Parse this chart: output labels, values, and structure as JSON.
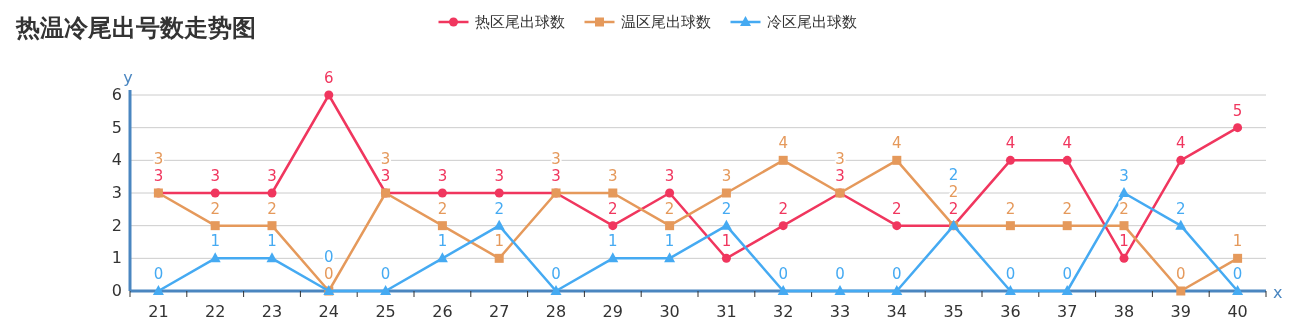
{
  "chart_data": {
    "type": "line",
    "title": "热温冷尾出号数走势图",
    "xlabel": "x",
    "ylabel": "y",
    "categories": [
      "21",
      "22",
      "23",
      "24",
      "25",
      "26",
      "27",
      "28",
      "29",
      "30",
      "31",
      "32",
      "33",
      "34",
      "35",
      "36",
      "37",
      "38",
      "39",
      "40"
    ],
    "series": [
      {
        "name": "热区尾出球数",
        "color": "#f0365e",
        "marker": "circle",
        "values": [
          3,
          3,
          3,
          6,
          3,
          3,
          3,
          3,
          2,
          3,
          1,
          2,
          3,
          2,
          2,
          4,
          4,
          1,
          4,
          5
        ]
      },
      {
        "name": "温区尾出球数",
        "color": "#e5995b",
        "marker": "square",
        "values": [
          3,
          2,
          2,
          0,
          3,
          2,
          1,
          3,
          3,
          2,
          3,
          4,
          3,
          4,
          2,
          2,
          2,
          2,
          0,
          1
        ]
      },
      {
        "name": "冷区尾出球数",
        "color": "#45aaf2",
        "marker": "triangle",
        "values": [
          0,
          1,
          1,
          0,
          0,
          1,
          2,
          0,
          1,
          1,
          2,
          0,
          0,
          0,
          2,
          0,
          0,
          3,
          2,
          0
        ]
      }
    ],
    "ylim": [
      0,
      6
    ],
    "yticks": [
      0,
      1,
      2,
      3,
      4,
      5,
      6
    ],
    "grid": "y",
    "legend": "top",
    "data_labels": true
  }
}
